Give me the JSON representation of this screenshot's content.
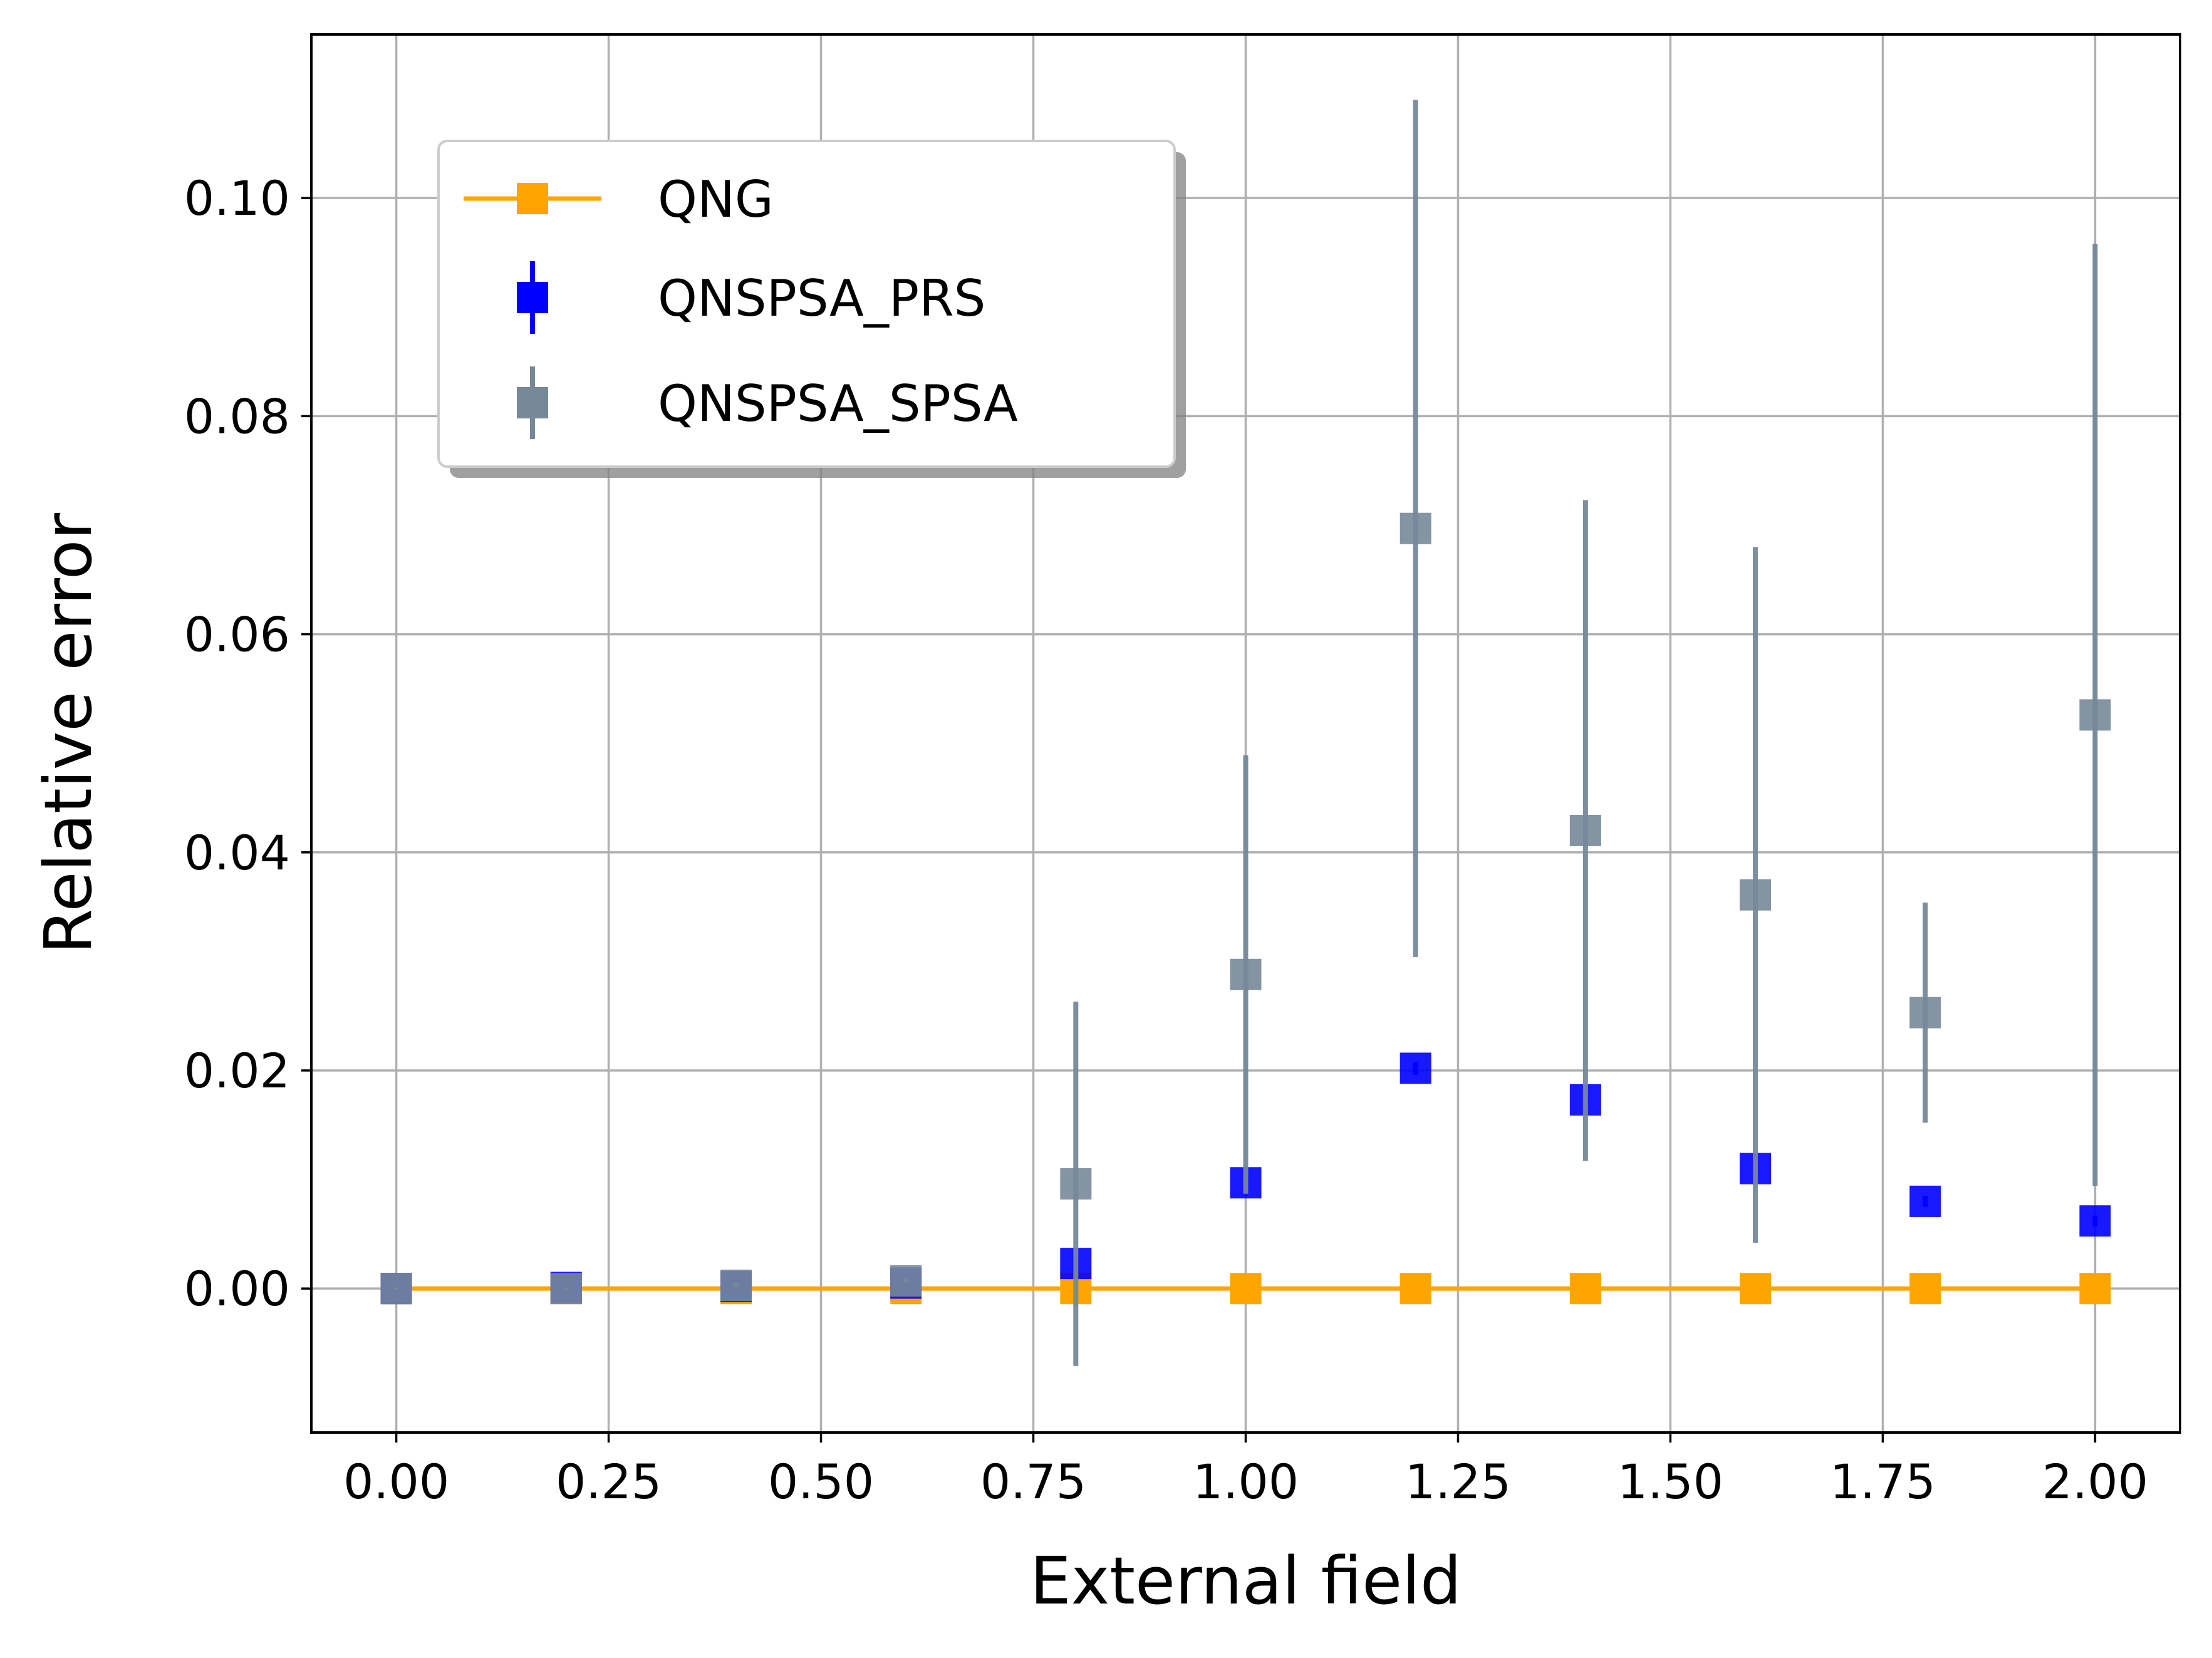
{
  "chart_data": {
    "type": "scatter",
    "title": "",
    "xlabel": "External field",
    "ylabel": "Relative error",
    "xlim": [
      -0.1,
      2.1
    ],
    "ylim": [
      -0.0132,
      0.115
    ],
    "xticks": [
      "0.00",
      "0.25",
      "0.50",
      "0.75",
      "1.00",
      "1.25",
      "1.50",
      "1.75",
      "2.00"
    ],
    "yticks": [
      "0.00",
      "0.02",
      "0.04",
      "0.06",
      "0.08",
      "0.10"
    ],
    "grid": true,
    "legend_position": "upper-left",
    "x": [
      0.0,
      0.2,
      0.4,
      0.6,
      0.8,
      1.0,
      1.2,
      1.4,
      1.6,
      1.8,
      2.0
    ],
    "series": [
      {
        "name": "QNG",
        "style": "line-with-square-markers",
        "color": "#FFA500",
        "y": [
          0,
          0,
          0,
          0,
          0,
          0,
          0,
          0,
          0,
          0,
          0
        ]
      },
      {
        "name": "QNSPSA_PRS",
        "style": "square-markers-with-error-bars",
        "color": "#0000FF",
        "y": [
          0.0,
          0.0001,
          0.0002,
          0.0005,
          0.0023,
          0.0097,
          0.0202,
          0.0173,
          0.011,
          0.008,
          0.0062
        ],
        "yerr": [
          0.0001,
          0.0001,
          0.0002,
          0.0002,
          0.0005,
          0.0006,
          0.0006,
          0.0006,
          0.0006,
          0.0005,
          0.0005
        ]
      },
      {
        "name": "QNSPSA_SPSA",
        "style": "square-markers-with-error-bars",
        "color": "#778899",
        "y": [
          0.0,
          0.0,
          0.0003,
          0.0007,
          0.0096,
          0.0288,
          0.0697,
          0.042,
          0.0361,
          0.0253,
          0.0526
        ],
        "yerr": [
          0.0001,
          0.0001,
          0.0002,
          0.0002,
          0.0167,
          0.0201,
          0.0393,
          0.0303,
          0.0319,
          0.0101,
          0.0432
        ]
      }
    ]
  }
}
